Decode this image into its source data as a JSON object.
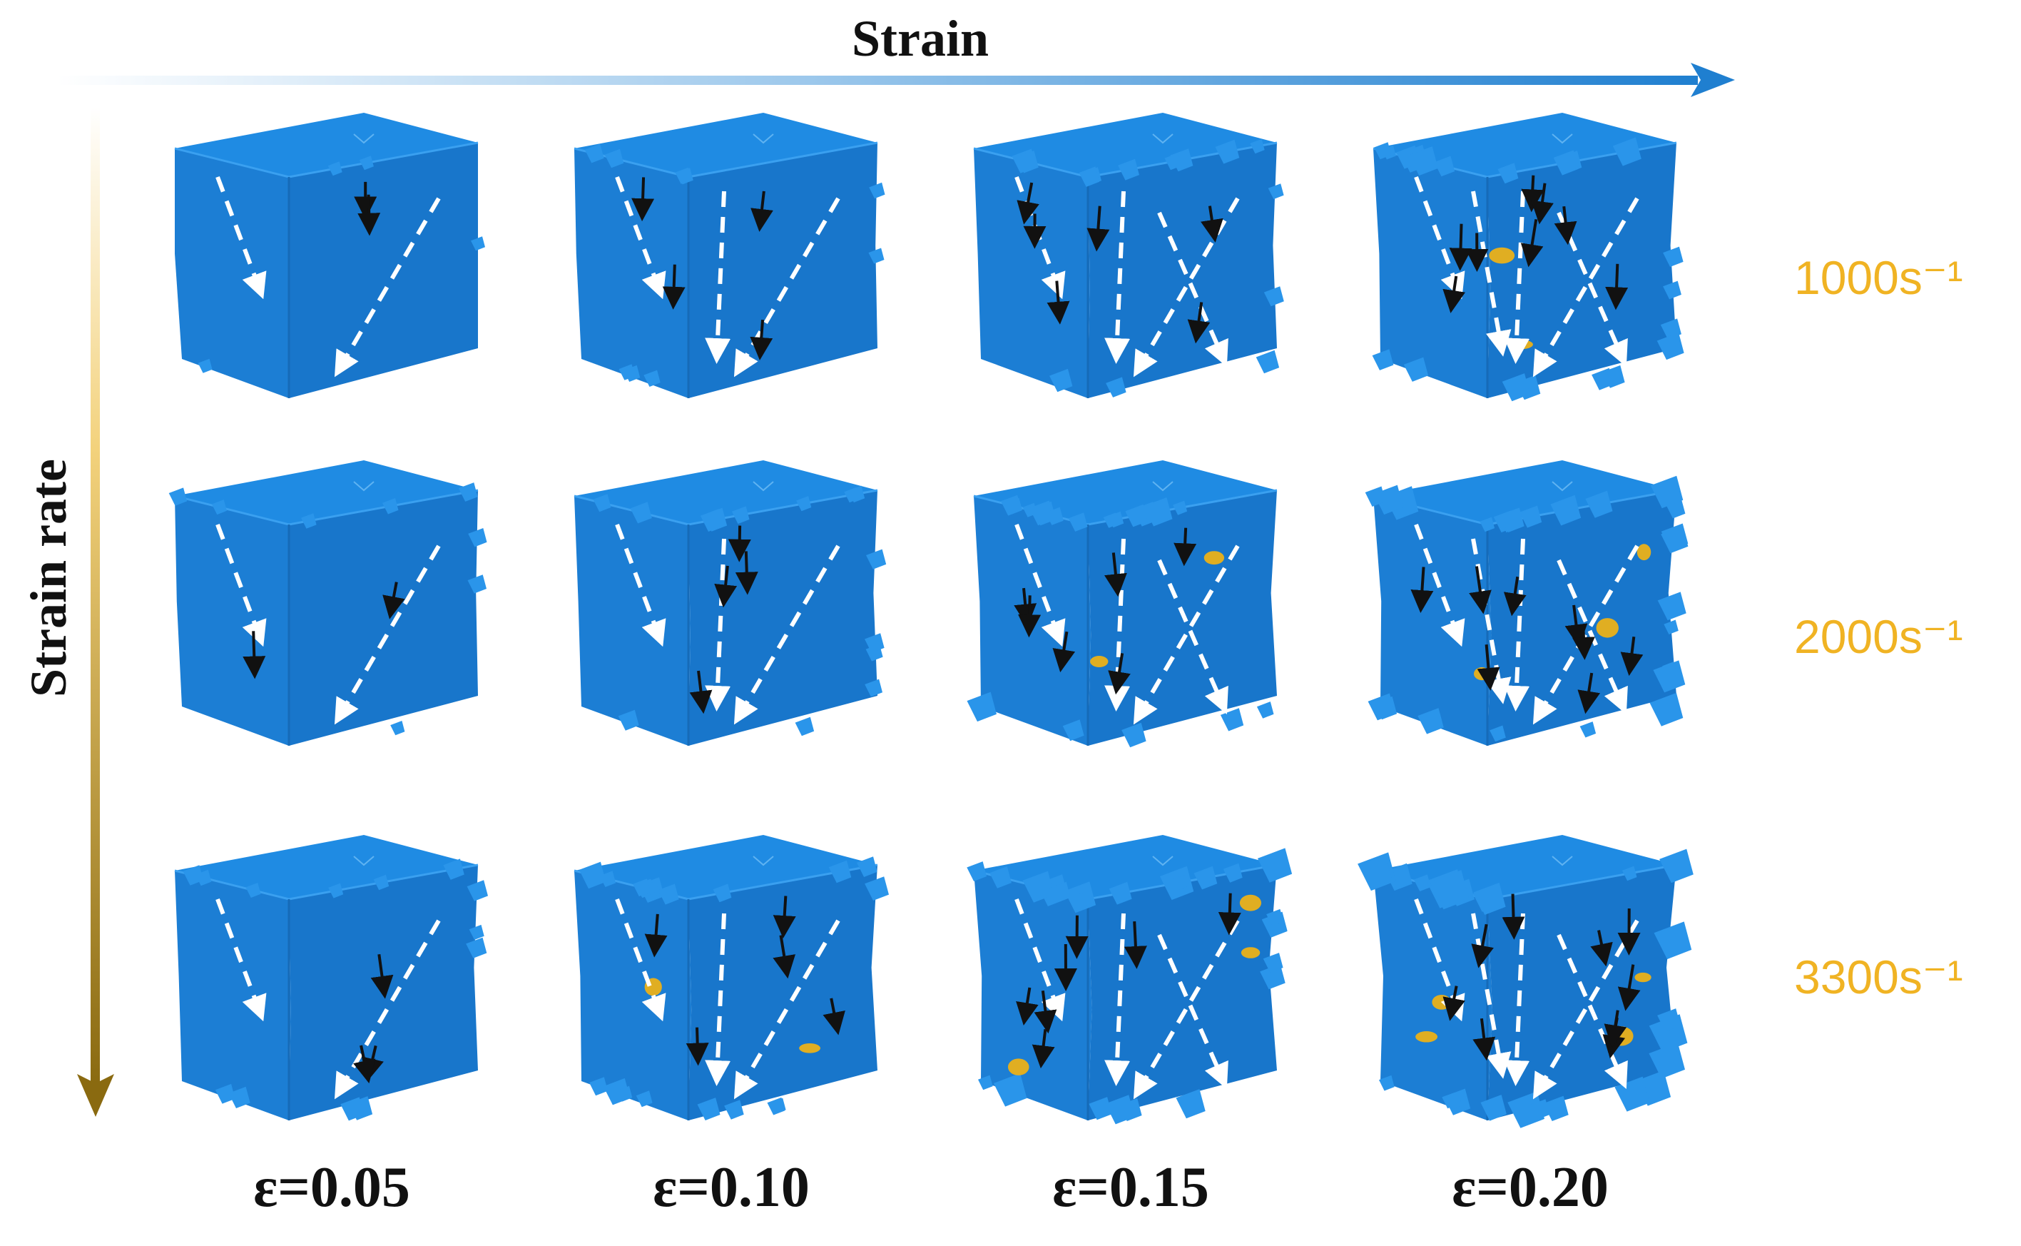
{
  "axes": {
    "horizontal_label": "Strain",
    "vertical_label": "Strain rate"
  },
  "columns": [
    {
      "strain_label": "ε=0.05"
    },
    {
      "strain_label": "ε=0.10"
    },
    {
      "strain_label": "ε=0.15"
    },
    {
      "strain_label": "ε=0.20"
    }
  ],
  "rows": [
    {
      "rate_label": "1000s⁻¹"
    },
    {
      "rate_label": "2000s⁻¹"
    },
    {
      "rate_label": "3300s⁻¹"
    }
  ],
  "colors": {
    "cube_top": "#1f8be3",
    "cube_left": "#1c7ed4",
    "cube_right": "#1876cb",
    "debris": "#2a95ea",
    "highlight_yellow": "#e0ae22",
    "rate_label": "#f0b323",
    "horizontal_arrow": "#1f7fd0",
    "vertical_arrow": "#8a6a10",
    "black_arrow": "#111111",
    "dashed_arrow": "#ffffff"
  },
  "icons": {
    "shear_band_marker": "white-dashed-arrow",
    "crack_marker": "black-arrow"
  }
}
